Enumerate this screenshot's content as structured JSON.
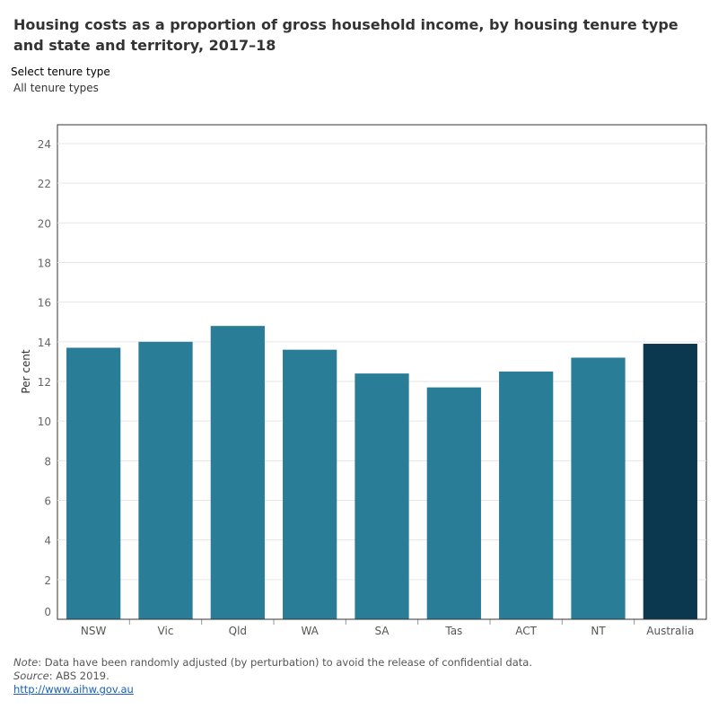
{
  "title": "Housing costs as a proportion of gross household income, by housing tenure type and state and territory, 2017–18",
  "filter": {
    "label": "Select tenure type",
    "value": "All tenure types"
  },
  "notes": {
    "note_label": "Note",
    "note_text": ": Data have been randomly adjusted (by perturbation) to avoid the release of confidential data.",
    "source_label": "Source",
    "source_text": ": ABS 2019.",
    "link": "http://www.aihw.gov.au"
  },
  "chart_data": {
    "type": "bar",
    "title": "",
    "xlabel": "",
    "ylabel": "Per cent",
    "ylim": [
      0,
      24
    ],
    "yticks": [
      0,
      2,
      4,
      6,
      8,
      10,
      12,
      14,
      16,
      18,
      20,
      22,
      24
    ],
    "grid": true,
    "categories": [
      "NSW",
      "Vic",
      "Qld",
      "WA",
      "SA",
      "Tas",
      "ACT",
      "NT",
      "Australia"
    ],
    "values": [
      13.7,
      14.0,
      14.8,
      13.6,
      12.4,
      11.7,
      12.5,
      13.2,
      13.9
    ],
    "colors": {
      "state": "#2a7d97",
      "national": "#0b374f"
    }
  }
}
